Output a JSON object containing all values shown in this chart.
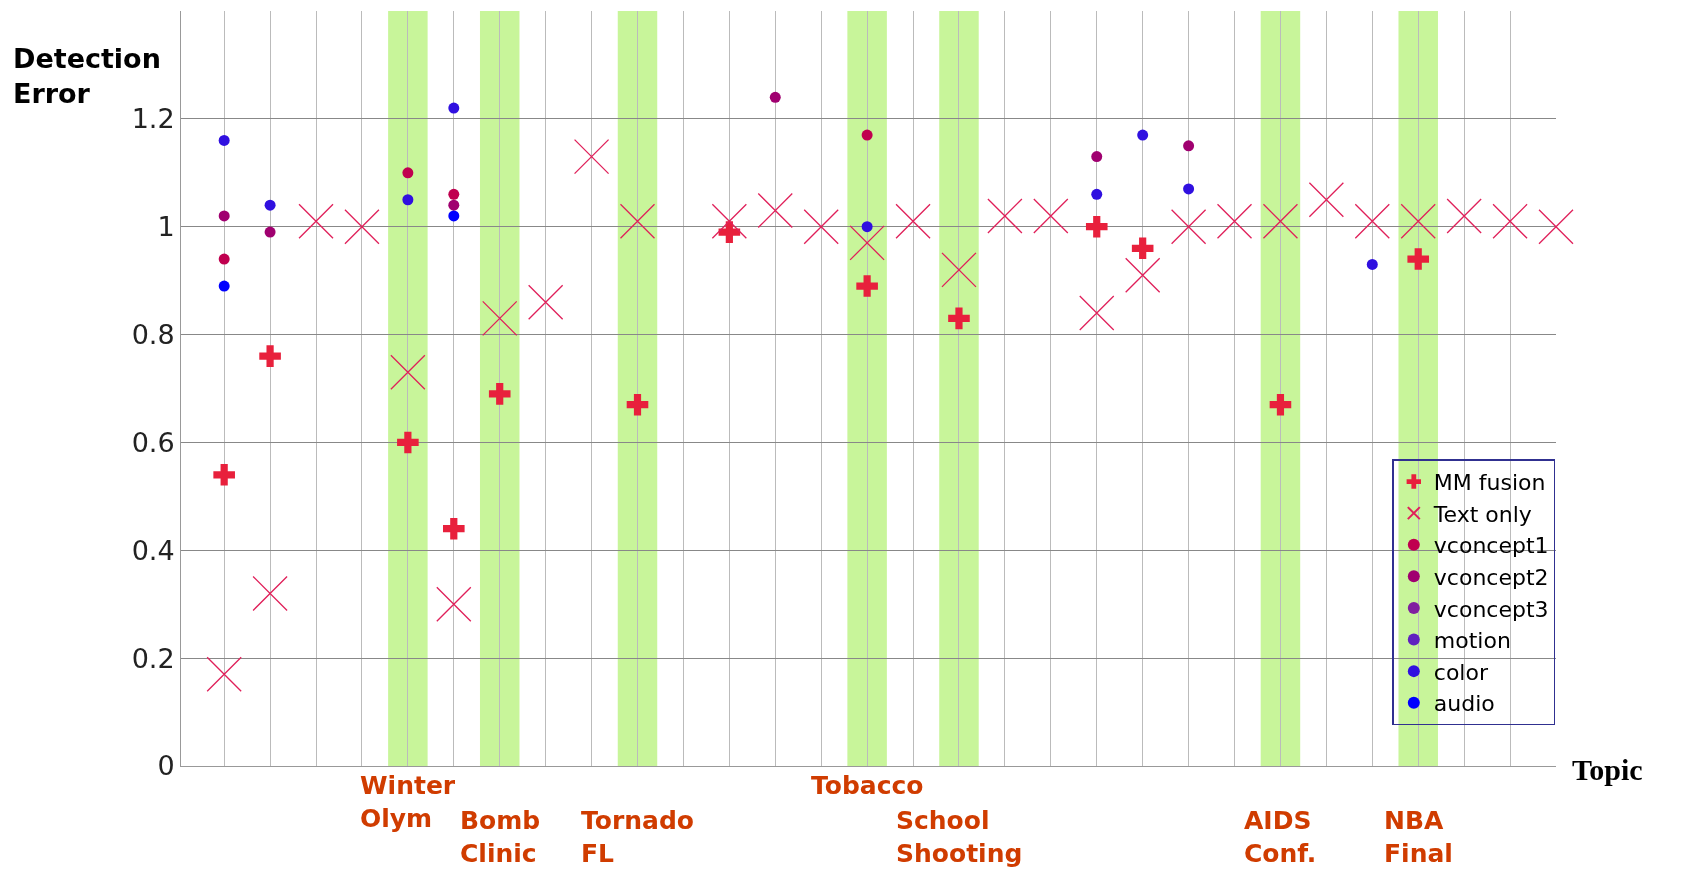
{
  "chart_data": {
    "type": "scatter",
    "ylabel": "Detection\nError",
    "xlabel": "Topic",
    "categories": [
      null,
      null,
      null,
      null,
      "Winter\nOlym",
      null,
      "Bomb\nClinic",
      null,
      null,
      "Tornado\nFL",
      null,
      null,
      null,
      null,
      "Tobacco",
      null,
      "School\nShooting",
      null,
      null,
      null,
      null,
      null,
      null,
      "AIDS\nConf.",
      null,
      null,
      "NBA\nFinal",
      null,
      null,
      null
    ],
    "ylim": [
      0,
      1.4
    ],
    "yticks": [
      0,
      0.2,
      0.4,
      0.6,
      0.8,
      1,
      1.2
    ],
    "grid": true,
    "legend": "bottom right",
    "series": [
      {
        "name": "MM fusion",
        "color": "#e8203c",
        "marker": "cross",
        "values": [
          0.54,
          0.76,
          null,
          null,
          0.6,
          0.44,
          0.69,
          null,
          null,
          0.67,
          null,
          0.99,
          null,
          null,
          0.89,
          null,
          0.83,
          null,
          null,
          1.0,
          0.96,
          null,
          null,
          0.67,
          null,
          null,
          0.94,
          null,
          null,
          null
        ]
      },
      {
        "name": "Text only",
        "color": "#e0205a",
        "marker": "x",
        "values": [
          0.17,
          0.32,
          1.01,
          1.0,
          0.73,
          0.3,
          0.83,
          0.86,
          1.13,
          1.01,
          null,
          1.01,
          1.03,
          1.0,
          0.97,
          1.01,
          0.92,
          1.02,
          1.02,
          0.84,
          0.91,
          1.0,
          1.01,
          1.01,
          1.05,
          1.01,
          1.01,
          1.02,
          1.01,
          1.0
        ]
      },
      {
        "name": "vconcept1",
        "color": "#c0004f",
        "marker": "circle",
        "values": [
          0.94,
          null,
          null,
          null,
          1.1,
          1.06,
          null,
          null,
          null,
          null,
          null,
          null,
          null,
          null,
          1.17,
          null,
          null,
          null,
          null,
          null,
          null,
          null,
          null,
          null,
          null,
          null,
          null,
          null,
          null,
          null
        ]
      },
      {
        "name": "vconcept2",
        "color": "#a00070",
        "marker": "circle",
        "values": [
          1.02,
          0.99,
          null,
          null,
          null,
          1.04,
          null,
          null,
          null,
          null,
          null,
          null,
          1.24,
          null,
          null,
          null,
          null,
          null,
          null,
          1.13,
          null,
          1.15,
          null,
          null,
          null,
          null,
          null,
          null,
          null,
          null
        ]
      },
      {
        "name": "vconcept3",
        "color": "#8020a0",
        "marker": "circle",
        "values": [
          null,
          null,
          null,
          null,
          null,
          null,
          null,
          null,
          null,
          null,
          null,
          null,
          null,
          null,
          null,
          null,
          null,
          null,
          null,
          null,
          null,
          null,
          null,
          null,
          null,
          null,
          null,
          null,
          null,
          null
        ]
      },
      {
        "name": "motion",
        "color": "#6020c0",
        "marker": "circle",
        "values": [
          null,
          null,
          null,
          null,
          null,
          null,
          null,
          null,
          null,
          null,
          null,
          null,
          null,
          null,
          null,
          null,
          null,
          null,
          null,
          null,
          null,
          null,
          null,
          null,
          null,
          null,
          null,
          null,
          null,
          null
        ]
      },
      {
        "name": "color",
        "color": "#3010e0",
        "marker": "circle",
        "values": [
          1.16,
          1.04,
          null,
          null,
          1.05,
          1.22,
          null,
          null,
          null,
          null,
          null,
          null,
          null,
          null,
          1.0,
          null,
          null,
          null,
          null,
          1.06,
          1.17,
          1.07,
          null,
          null,
          null,
          0.93,
          null,
          null,
          null,
          null
        ]
      },
      {
        "name": "audio",
        "color": "#0000ff",
        "marker": "circle",
        "values": [
          0.89,
          null,
          null,
          null,
          null,
          1.02,
          null,
          null,
          null,
          null,
          null,
          null,
          null,
          null,
          null,
          null,
          null,
          null,
          null,
          null,
          null,
          null,
          null,
          null,
          null,
          null,
          null,
          null,
          null,
          null
        ]
      }
    ],
    "bands": [
      {
        "axis": "x",
        "from": "Winter\nOlym",
        "to": "Winter\nOlym",
        "color": "#c8f59a"
      },
      {
        "axis": "x",
        "from": "Bomb\nClinic",
        "to": "Bomb\nClinic",
        "color": "#c8f59a"
      },
      {
        "axis": "x",
        "from": "Tornado\nFL",
        "to": "Tornado\nFL",
        "color": "#c8f59a"
      },
      {
        "axis": "x",
        "from": "Tobacco",
        "to": "Tobacco",
        "color": "#c8f59a"
      },
      {
        "axis": "x",
        "from": "School\nShooting",
        "to": "School\nShooting",
        "color": "#c8f59a"
      },
      {
        "axis": "x",
        "from": "AIDS\nConf.",
        "to": "AIDS\nConf.",
        "color": "#c8f59a"
      },
      {
        "axis": "x",
        "from": "NBA\nFinal",
        "to": "NBA\nFinal",
        "color": "#c8f59a"
      }
    ]
  }
}
